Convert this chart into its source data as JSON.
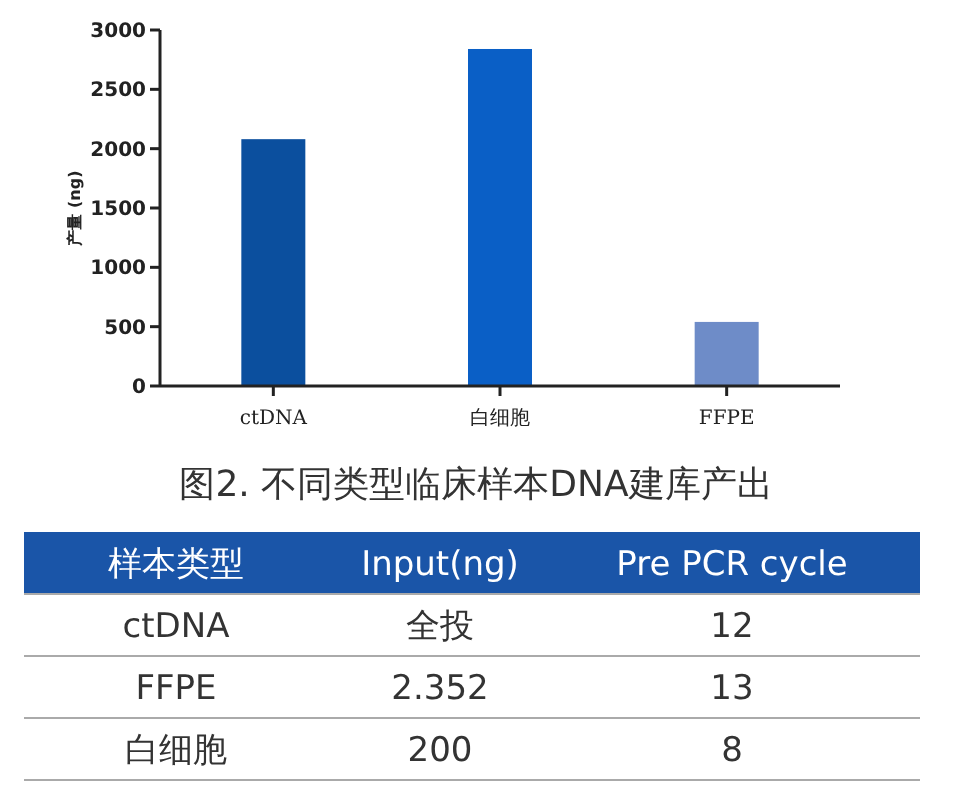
{
  "chart_data": [
    {
      "type": "bar",
      "ylabel": "产量 (ng)",
      "categories": [
        "ctDNA",
        "白细胞",
        "FFPE"
      ],
      "values": [
        2080,
        2840,
        540
      ],
      "colors": [
        "#0b4f9e",
        "#0a5fc6",
        "#6e8cc8"
      ],
      "ylim": [
        0,
        3000
      ],
      "yticks": [
        0,
        500,
        1000,
        1500,
        2000,
        2500,
        3000
      ],
      "grid": false,
      "annotations": [
        "图2. 不同类型临床样本DNA建库产出"
      ]
    },
    {
      "type": "other",
      "annotations": [
        "样本类型",
        "Input(ng)",
        "Pre PCR cycle",
        "ctDNA",
        "全投",
        "12",
        "FFPE",
        "2.352",
        "13",
        "白细胞",
        "200",
        "8"
      ]
    }
  ]
}
